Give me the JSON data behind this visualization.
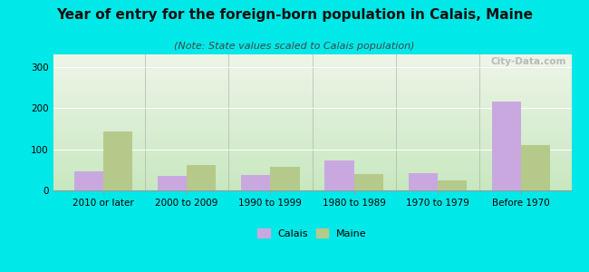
{
  "title": "Year of entry for the foreign-born population in Calais, Maine",
  "subtitle": "(Note: State values scaled to Calais population)",
  "categories": [
    "2010 or later",
    "2000 to 2009",
    "1990 to 1999",
    "1980 to 1989",
    "1970 to 1979",
    "Before 1970"
  ],
  "calais_values": [
    47,
    35,
    37,
    72,
    42,
    215
  ],
  "maine_values": [
    143,
    62,
    57,
    40,
    25,
    110
  ],
  "calais_color": "#c9a8e0",
  "maine_color": "#b5c98a",
  "background_outer": "#00e8e8",
  "gradient_top": "#eef5e8",
  "gradient_bottom": "#c8e8c0",
  "ylim": [
    0,
    330
  ],
  "yticks": [
    0,
    100,
    200,
    300
  ],
  "bar_width": 0.35,
  "title_fontsize": 11,
  "subtitle_fontsize": 8,
  "tick_fontsize": 7.5,
  "legend_fontsize": 8,
  "watermark_text": "City-Data.com"
}
